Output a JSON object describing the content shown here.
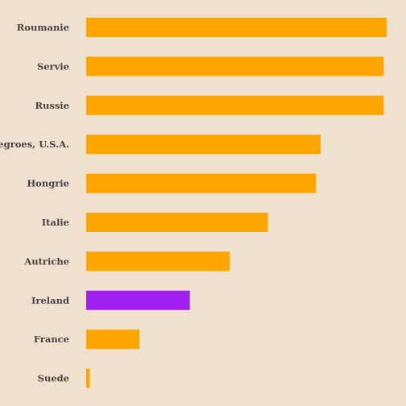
{
  "chart_data": {
    "type": "bar",
    "orientation": "horizontal",
    "title": "",
    "xlabel": "",
    "ylabel": "",
    "categories": [
      "Roumanie",
      "Servie",
      "Russie",
      "Negroes, U.S.A.",
      "Hongrie",
      "Italie",
      "Autriche",
      "Ireland",
      "France",
      "Suede"
    ],
    "values": [
      1.0,
      0.99,
      0.99,
      0.78,
      0.765,
      0.605,
      0.478,
      0.345,
      0.177,
      0.012
    ],
    "xlim": [
      0,
      1.0
    ],
    "grid": false,
    "legend": "none",
    "colors": {
      "default_bar": "#ffa500",
      "highlight_bar": "#a020f0",
      "background": "#f0e0ce",
      "label": "#444444"
    },
    "highlight": "Ireland"
  }
}
